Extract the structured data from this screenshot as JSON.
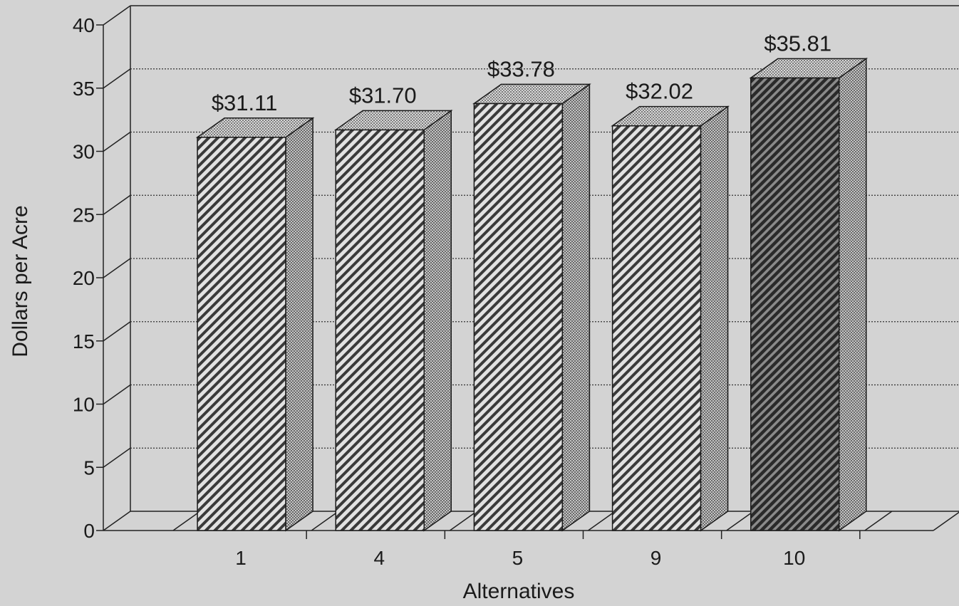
{
  "chart_data": {
    "type": "bar",
    "xlabel": "Alternatives",
    "ylabel": "Dollars per Acre",
    "categories": [
      "1",
      "4",
      "5",
      "9",
      "10"
    ],
    "values": [
      31.11,
      31.7,
      33.78,
      32.02,
      35.81
    ],
    "data_labels": [
      "$31.11",
      "$31.70",
      "$33.78",
      "$32.02",
      "$35.81"
    ],
    "ylim": [
      0,
      40
    ],
    "yticks": [
      "0",
      "5",
      "10",
      "15",
      "20",
      "25",
      "30",
      "35",
      "40"
    ],
    "grid": true,
    "style": "3d-bar"
  }
}
